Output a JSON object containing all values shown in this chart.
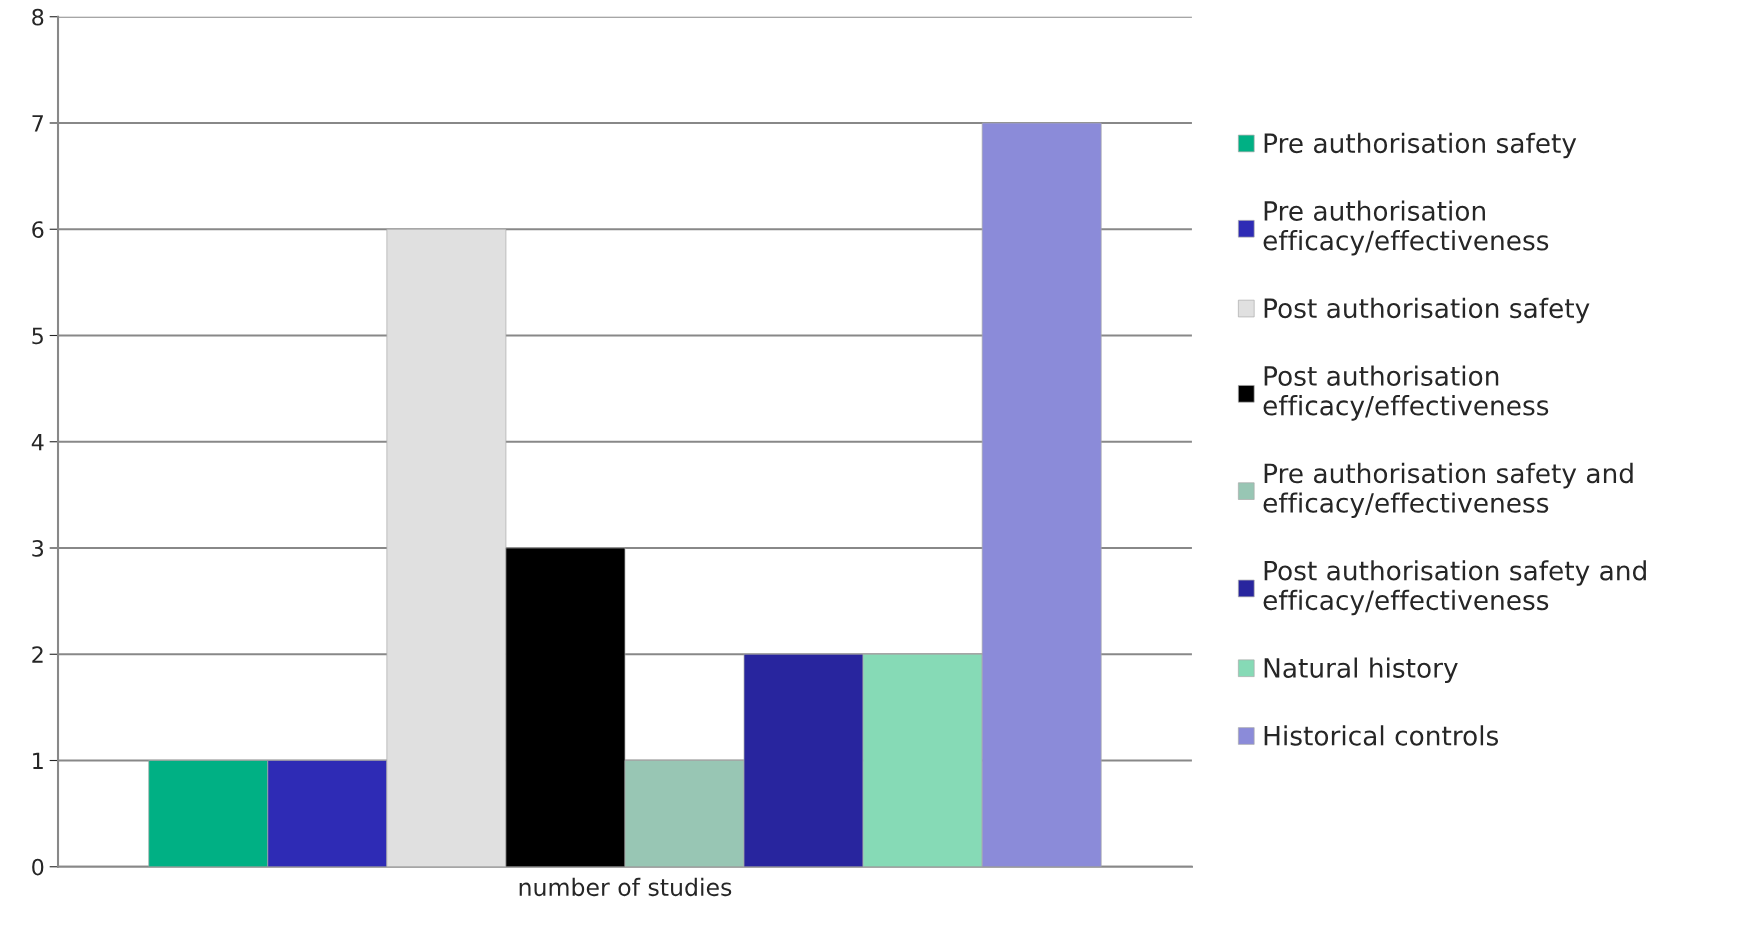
{
  "chart_data": {
    "type": "bar",
    "categories": [
      "number of studies"
    ],
    "series": [
      {
        "name": "Pre authorisation safety",
        "color": "#00b084",
        "values": [
          1
        ]
      },
      {
        "name": "Pre authorisation efficacy/effectiveness",
        "color": "#2e2bb5",
        "values": [
          1
        ]
      },
      {
        "name": "Post authorisation safety",
        "color": "#e0e0e0",
        "values": [
          6
        ]
      },
      {
        "name": "Post authorisation efficacy/effectiveness",
        "color": "#000000",
        "values": [
          3
        ]
      },
      {
        "name": "Pre authorisation safety and efficacy/effectiveness",
        "color": "#98c6b4",
        "values": [
          1
        ]
      },
      {
        "name": "Post authorisation safety and efficacy/effectiveness",
        "color": "#28259e",
        "values": [
          2
        ]
      },
      {
        "name": "Natural history",
        "color": "#86dab6",
        "values": [
          2
        ]
      },
      {
        "name": "Historical controls",
        "color": "#8b8bd9",
        "values": [
          7
        ]
      }
    ],
    "ylim": [
      0,
      8
    ],
    "yticks": [
      0,
      1,
      2,
      3,
      4,
      5,
      6,
      7,
      8
    ],
    "grid": "y",
    "legend": "right"
  }
}
